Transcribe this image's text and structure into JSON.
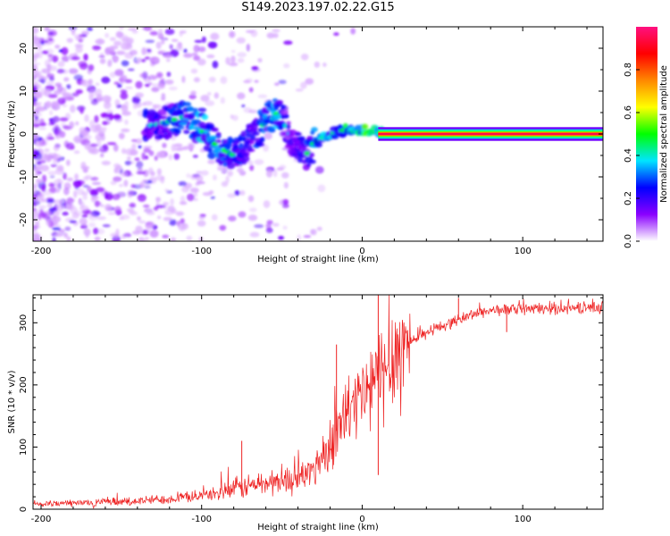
{
  "title": "S149.2023.197.02.22.G15",
  "chart_data": [
    {
      "type": "heatmap",
      "xlabel": "Height of straight line (km)",
      "ylabel": "Frequency (Hz)",
      "xlim": [
        -205,
        150
      ],
      "ylim": [
        -25,
        25
      ],
      "xticks": [
        -200,
        -100,
        0,
        100
      ],
      "xtick_labels": [
        "-200",
        "-100",
        "0",
        "100"
      ],
      "yticks": [
        -20,
        -10,
        0,
        10,
        20
      ],
      "ytick_labels": [
        "-20",
        "-10",
        "0",
        "10",
        "20"
      ],
      "grid": false,
      "colorbar": {
        "label": "Normalized spectral amplitude",
        "range": [
          0,
          1
        ],
        "ticks": [
          0,
          0.2,
          0.4,
          0.6,
          0.8
        ],
        "tick_labels": [
          "0.0",
          "0.2",
          "0.4",
          "0.6",
          "0.8"
        ],
        "colormap": [
          "#ffffff",
          "#8a00ff",
          "#0000ff",
          "#00e5ff",
          "#00ff00",
          "#ffff00",
          "#ff8800",
          "#ff0000",
          "#ff1080"
        ]
      },
      "ridge": {
        "x": [
          -130,
          -120,
          -110,
          -100,
          -90,
          -80,
          -70,
          -60,
          -55,
          -50,
          -45,
          -40,
          -35,
          -30,
          -25,
          -20,
          -15,
          -10,
          -5,
          0,
          5,
          10,
          20,
          60,
          100,
          150
        ],
        "frequency": [
          2,
          3,
          4,
          1,
          -3,
          -5,
          -2,
          3,
          5,
          4,
          0,
          -3,
          -5,
          -2,
          -1,
          0,
          0.5,
          1,
          0.5,
          1,
          0.5,
          0.5,
          0,
          0,
          0,
          0
        ],
        "amplitude": [
          0.25,
          0.3,
          0.35,
          0.4,
          0.35,
          0.3,
          0.25,
          0.35,
          0.45,
          0.3,
          0.2,
          0.2,
          0.3,
          0.35,
          0.4,
          0.45,
          0.5,
          0.5,
          0.45,
          0.55,
          0.55,
          0.6,
          1.0,
          1.0,
          1.0,
          1.0
        ]
      }
    },
    {
      "type": "line",
      "xlabel": "Height of straight line (km)",
      "ylabel": "SNR (10 * v/v)",
      "xlim": [
        -205,
        150
      ],
      "ylim": [
        0,
        345
      ],
      "xticks": [
        -200,
        -100,
        0,
        100
      ],
      "xtick_labels": [
        "-200",
        "-100",
        "0",
        "100"
      ],
      "yticks": [
        0,
        100,
        200,
        300
      ],
      "ytick_labels": [
        "0",
        "100",
        "200",
        "300"
      ],
      "grid": false,
      "series": [
        {
          "color": "#ee2222",
          "x": [
            -205,
            -190,
            -175,
            -160,
            -145,
            -130,
            -115,
            -100,
            -90,
            -80,
            -70,
            -60,
            -50,
            -40,
            -35,
            -30,
            -25,
            -20,
            -15,
            -10,
            -5,
            0,
            5,
            10,
            15,
            20,
            30,
            40,
            50,
            60,
            70,
            80,
            100,
            120,
            150
          ],
          "y": [
            8,
            9,
            10,
            11,
            12,
            15,
            18,
            22,
            26,
            32,
            38,
            42,
            45,
            50,
            55,
            65,
            85,
            110,
            130,
            150,
            165,
            180,
            195,
            210,
            230,
            250,
            270,
            285,
            295,
            305,
            315,
            320,
            322,
            323,
            325
          ]
        }
      ],
      "spikes": [
        {
          "x": -75,
          "y": 110
        },
        {
          "x": -16,
          "y": 265
        },
        {
          "x": 10,
          "y": 345
        },
        {
          "x": 10,
          "y": 55
        },
        {
          "x": 60,
          "y": 340
        },
        {
          "x": 90,
          "y": 285
        }
      ]
    }
  ]
}
